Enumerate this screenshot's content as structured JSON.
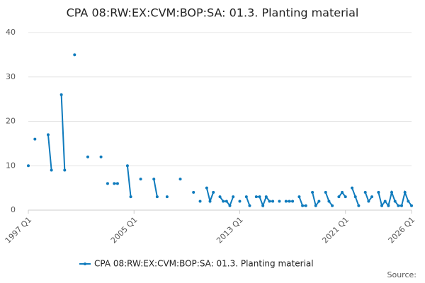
{
  "chart_data": {
    "type": "line",
    "title": "CPA 08:RW:EX:CVM:BOP:SA: 01.3. Planting material",
    "categories": [
      "1997 Q1",
      null,
      null,
      null,
      null,
      null,
      null,
      null,
      null,
      null,
      null,
      null,
      null,
      null,
      null,
      null,
      null,
      null,
      null,
      null,
      null,
      null,
      null,
      null,
      null,
      null,
      null,
      null,
      null,
      null,
      null,
      null,
      "2005 Q1",
      null,
      null,
      null,
      null,
      null,
      null,
      null,
      null,
      null,
      null,
      null,
      null,
      null,
      null,
      null,
      null,
      null,
      null,
      null,
      null,
      null,
      null,
      null,
      null,
      null,
      null,
      null,
      null,
      null,
      null,
      null,
      "2013 Q1",
      null,
      null,
      null,
      null,
      null,
      null,
      null,
      null,
      null,
      null,
      null,
      null,
      null,
      null,
      null,
      null,
      null,
      null,
      null,
      null,
      null,
      null,
      null,
      null,
      null,
      null,
      null,
      null,
      null,
      null,
      null,
      "2021 Q1",
      null,
      null,
      null,
      null,
      null,
      null,
      null,
      null,
      null,
      null,
      null,
      null,
      null,
      null,
      null,
      null,
      null,
      null,
      null,
      "2026 Q1"
    ],
    "series": [
      {
        "name": "CPA 08:RW:EX:CVM:BOP:SA: 01.3. Planting material",
        "color": "#0f7bbd",
        "values": [
          10,
          null,
          16,
          null,
          null,
          null,
          17,
          9,
          null,
          null,
          26,
          9,
          null,
          null,
          35,
          null,
          null,
          null,
          12,
          null,
          null,
          null,
          12,
          null,
          6,
          null,
          6,
          6,
          null,
          null,
          10,
          3,
          null,
          null,
          7,
          null,
          null,
          null,
          7,
          3,
          null,
          null,
          3,
          null,
          null,
          null,
          7,
          null,
          null,
          null,
          4,
          null,
          2,
          null,
          5,
          2,
          4,
          null,
          3,
          2,
          2,
          1,
          3,
          null,
          2,
          null,
          3,
          1,
          null,
          3,
          3,
          1,
          3,
          2,
          2,
          null,
          2,
          null,
          2,
          2,
          2,
          null,
          3,
          1,
          1,
          null,
          4,
          1,
          2,
          null,
          4,
          2,
          1,
          null,
          3,
          4,
          3,
          null,
          5,
          3,
          1,
          null,
          4,
          2,
          3,
          null,
          4,
          1,
          2,
          1,
          4,
          2,
          1,
          1,
          4,
          2,
          1
        ]
      }
    ],
    "ylim": [
      0,
      40
    ],
    "yticks": [
      0,
      10,
      20,
      30,
      40
    ],
    "grid": true,
    "legend": "bottom",
    "source": "Source:"
  }
}
